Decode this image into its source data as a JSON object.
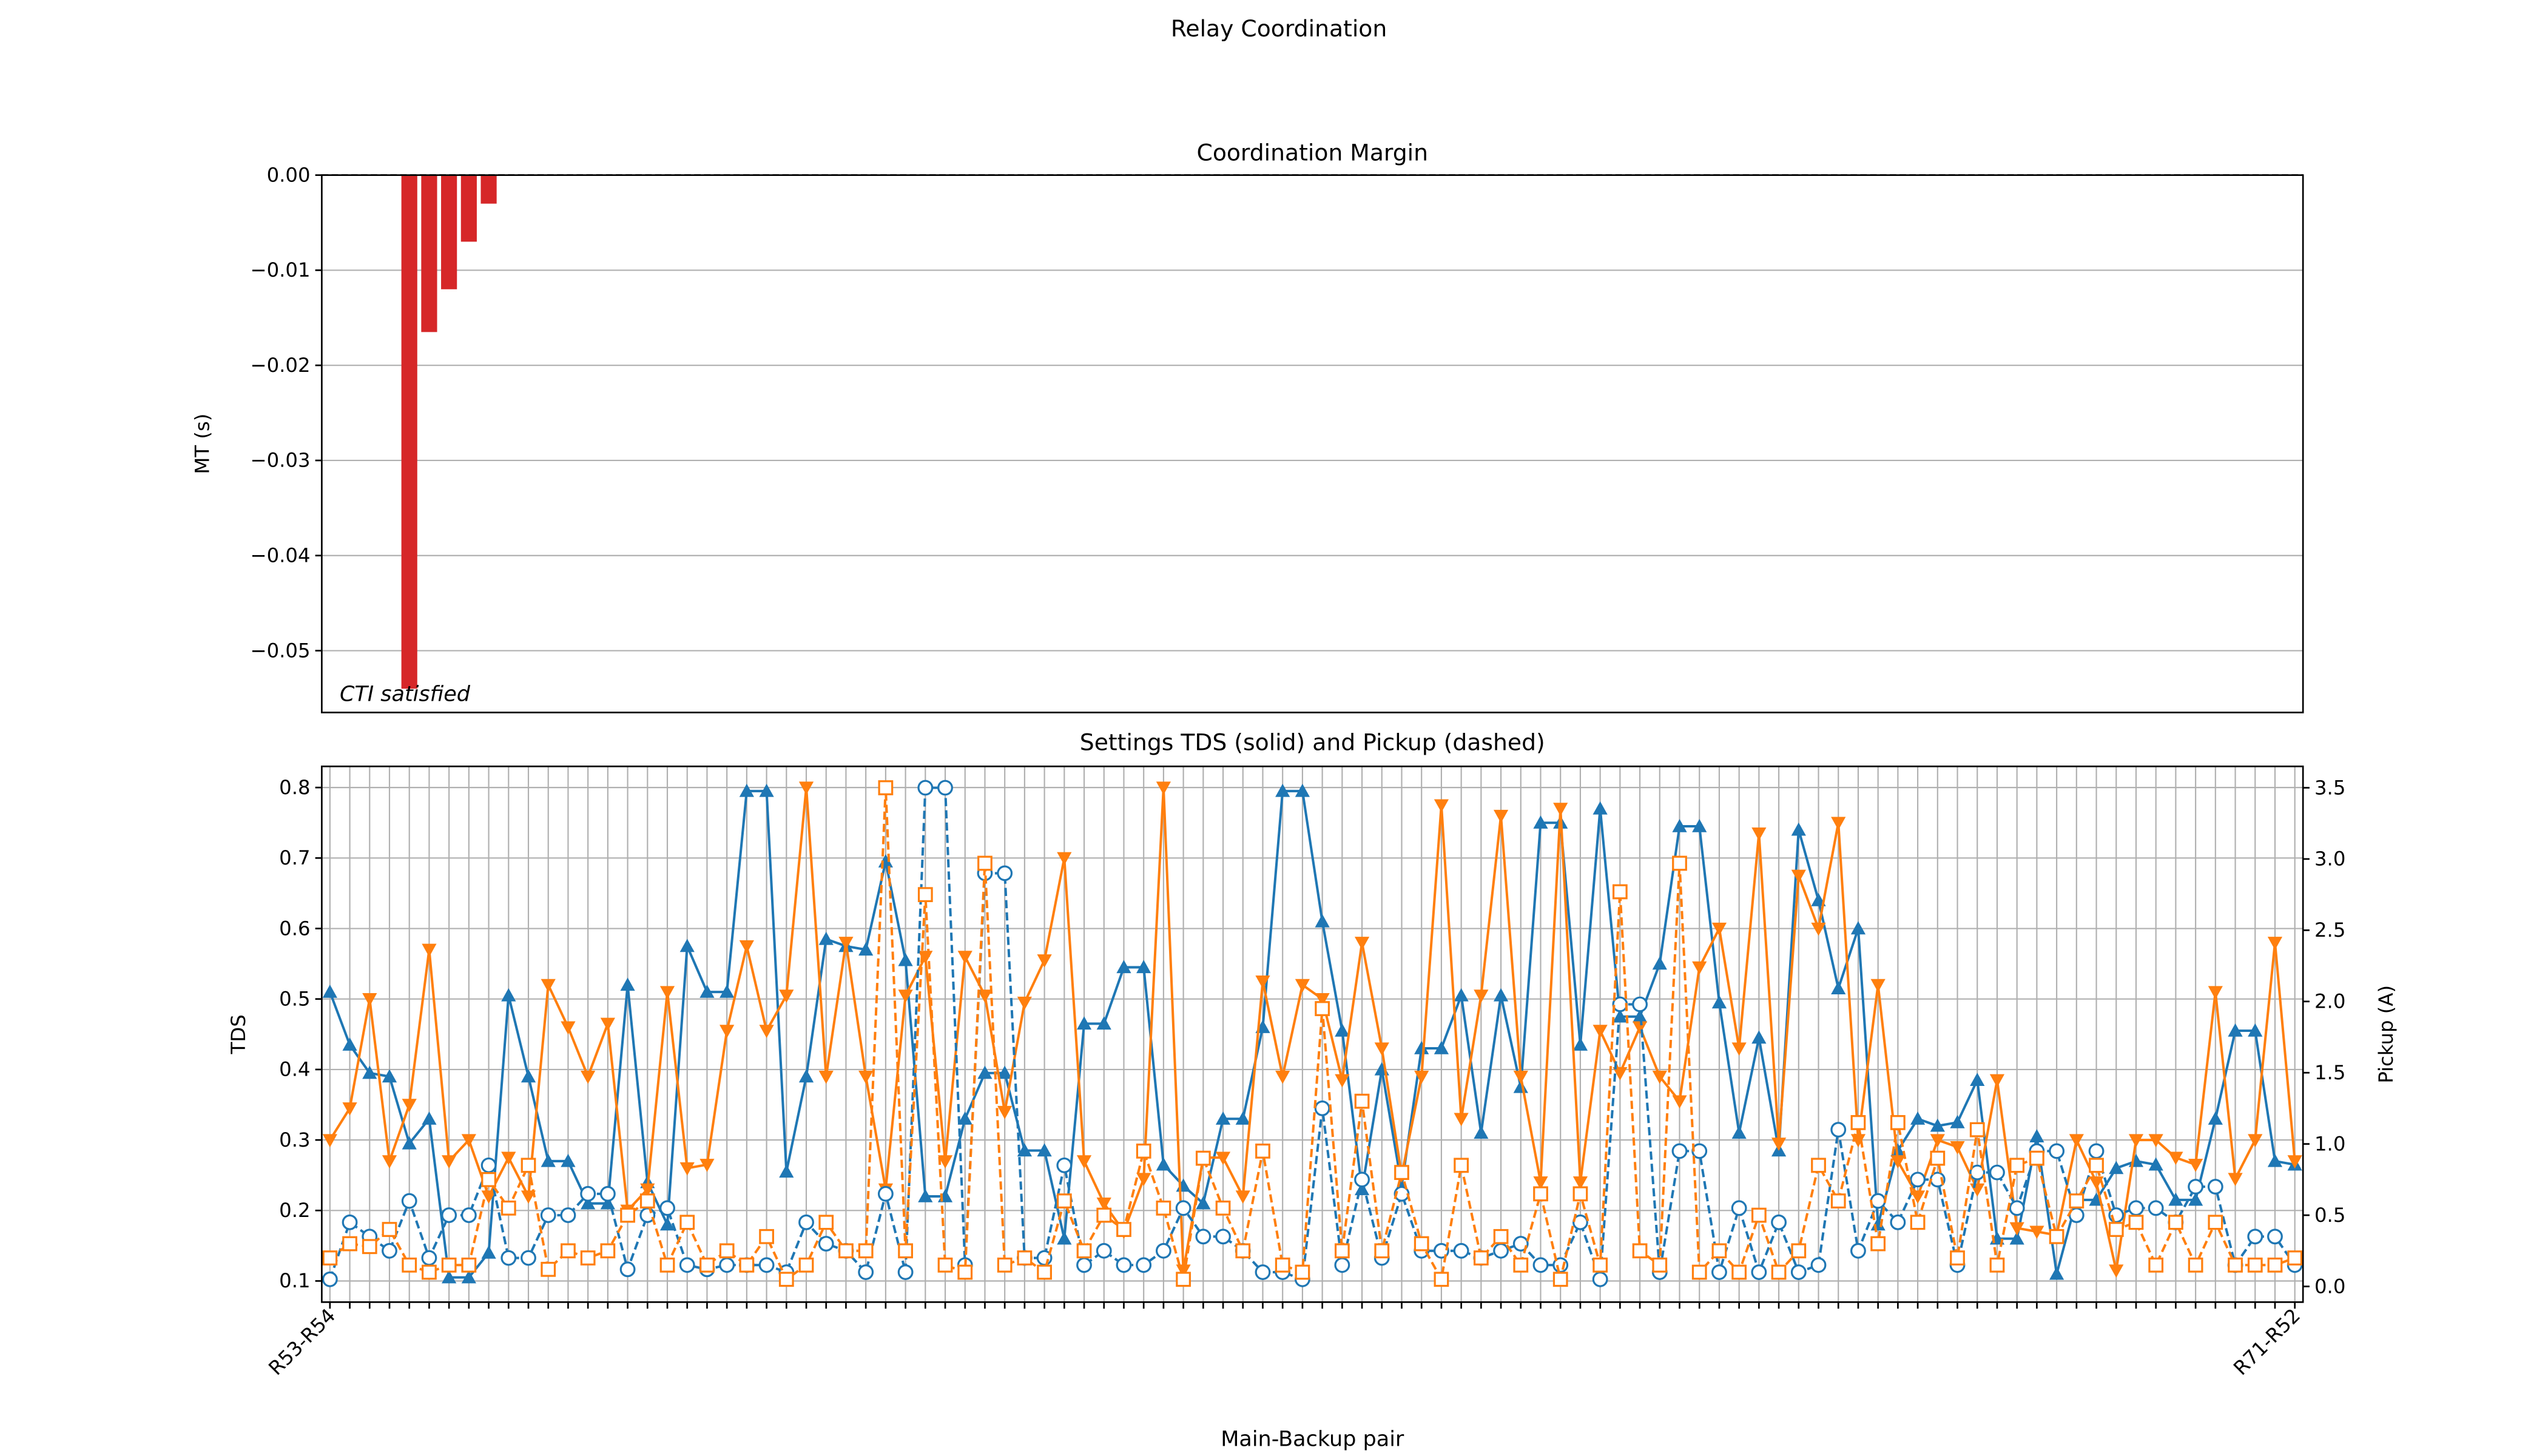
{
  "title": "Relay Coordination",
  "chart_data": [
    {
      "type": "bar",
      "title": "Coordination Margin",
      "ylabel": "MT (s)",
      "annotation": "CTI satisfied",
      "color": "#d62728",
      "reference_line": 0,
      "values": [
        0,
        0,
        0,
        0,
        -0.054,
        -0.0165,
        -0.012,
        -0.007,
        -0.003,
        0,
        0,
        0,
        0,
        0,
        0,
        0,
        0,
        0,
        0,
        0,
        0,
        0,
        0,
        0,
        0,
        0,
        0,
        0,
        0,
        0,
        0,
        0,
        0,
        0,
        0,
        0,
        0,
        0,
        0,
        0,
        0,
        0,
        0,
        0,
        0,
        0,
        0,
        0,
        0,
        0,
        0,
        0,
        0,
        0,
        0,
        0,
        0,
        0,
        0,
        0,
        0,
        0,
        0,
        0,
        0,
        0,
        0,
        0,
        0,
        0,
        0,
        0,
        0,
        0,
        0,
        0,
        0,
        0,
        0,
        0,
        0,
        0,
        0,
        0,
        0,
        0,
        0,
        0,
        0,
        0,
        0,
        0,
        0,
        0,
        0,
        0,
        0,
        0,
        0,
        0
      ],
      "ylim": [
        -0.0565,
        0
      ],
      "yticks": [
        {
          "value": 0,
          "label": "0.00"
        },
        {
          "value": -0.01,
          "label": "−0.01"
        },
        {
          "value": -0.02,
          "label": "−0.02"
        },
        {
          "value": -0.03,
          "label": "−0.03"
        },
        {
          "value": -0.04,
          "label": "−0.04"
        },
        {
          "value": -0.05,
          "label": "−0.05"
        }
      ],
      "grid": true
    },
    {
      "type": "line",
      "title": "Settings TDS (solid) and Pickup (dashed)",
      "xlabel": "Main-Backup pair",
      "ylabel": "TDS",
      "y2label": "Pickup (A)",
      "categories": [
        "R53-R54",
        null,
        null,
        null,
        null,
        null,
        null,
        null,
        null,
        null,
        null,
        null,
        null,
        null,
        null,
        null,
        null,
        null,
        null,
        null,
        null,
        null,
        null,
        null,
        null,
        null,
        null,
        null,
        null,
        null,
        null,
        null,
        null,
        null,
        null,
        null,
        null,
        null,
        null,
        null,
        null,
        null,
        null,
        null,
        null,
        null,
        null,
        null,
        null,
        null,
        null,
        null,
        null,
        null,
        null,
        null,
        null,
        null,
        null,
        null,
        null,
        null,
        null,
        null,
        null,
        null,
        null,
        null,
        null,
        null,
        null,
        null,
        null,
        null,
        null,
        null,
        null,
        null,
        null,
        null,
        null,
        null,
        null,
        null,
        null,
        null,
        null,
        null,
        null,
        null,
        null,
        null,
        null,
        null,
        null,
        null,
        null,
        null,
        null,
        "R71-R52"
      ],
      "series": [
        {
          "color": "#1f77b4",
          "marker": "triangle-up",
          "dashed": false,
          "axis": "y",
          "values": [
            0.51,
            0.435,
            0.395,
            0.39,
            0.295,
            0.33,
            0.105,
            0.105,
            0.14,
            0.505,
            0.39,
            0.27,
            0.27,
            0.21,
            0.21,
            0.52,
            0.24,
            0.18,
            0.575,
            0.51,
            0.51,
            0.795,
            0.795,
            0.255,
            0.39,
            0.585,
            0.575,
            0.57,
            0.695,
            0.555,
            0.22,
            0.22,
            0.33,
            0.395,
            0.395,
            0.285,
            0.285,
            0.16,
            0.465,
            0.465,
            0.545,
            0.545,
            0.265,
            0.235,
            0.21,
            0.33,
            0.33,
            0.46,
            0.795,
            0.795,
            0.61,
            0.455,
            0.23,
            0.4,
            0.235,
            0.43,
            0.43,
            0.505,
            0.31,
            0.505,
            0.375,
            0.75,
            0.75,
            0.435,
            0.77,
            0.475,
            0.475,
            0.55,
            0.745,
            0.745,
            0.495,
            0.31,
            0.445,
            0.285,
            0.74,
            0.64,
            0.515,
            0.6,
            0.18,
            0.285,
            0.33,
            0.32,
            0.325,
            0.385,
            0.16,
            0.16,
            0.305,
            0.11,
            0.215,
            0.215,
            0.26,
            0.27,
            0.265,
            0.215,
            0.215,
            0.33,
            0.455,
            0.455,
            0.27,
            0.265
          ]
        },
        {
          "color": "#ff7f0e",
          "marker": "triangle-down",
          "dashed": false,
          "axis": "y",
          "values": [
            0.3,
            0.345,
            0.5,
            0.27,
            0.35,
            0.57,
            0.27,
            0.3,
            0.22,
            0.275,
            0.22,
            0.52,
            0.46,
            0.39,
            0.465,
            0.2,
            0.23,
            0.51,
            0.26,
            0.265,
            0.455,
            0.575,
            0.455,
            0.505,
            0.8,
            0.39,
            0.58,
            0.39,
            0.23,
            0.505,
            0.56,
            0.27,
            0.56,
            0.505,
            0.34,
            0.495,
            0.555,
            0.7,
            0.27,
            0.21,
            0.17,
            0.245,
            0.8,
            0.115,
            0.275,
            0.275,
            0.22,
            0.525,
            0.39,
            0.52,
            0.5,
            0.385,
            0.58,
            0.43,
            0.25,
            0.39,
            0.775,
            0.33,
            0.505,
            0.76,
            0.39,
            0.24,
            0.77,
            0.24,
            0.455,
            0.395,
            0.46,
            0.39,
            0.355,
            0.545,
            0.6,
            0.43,
            0.735,
            0.295,
            0.675,
            0.6,
            0.75,
            0.3,
            0.52,
            0.27,
            0.22,
            0.3,
            0.29,
            0.23,
            0.385,
            0.175,
            0.17,
            0.165,
            0.3,
            0.24,
            0.115,
            0.3,
            0.3,
            0.275,
            0.265,
            0.51,
            0.245,
            0.3,
            0.58,
            0.27
          ]
        },
        {
          "color": "#1f77b4",
          "marker": "circle",
          "dashed": true,
          "axis": "y2",
          "values": [
            0.05,
            0.45,
            0.35,
            0.25,
            0.6,
            0.2,
            0.5,
            0.5,
            0.85,
            0.2,
            0.2,
            0.5,
            0.5,
            0.65,
            0.65,
            0.12,
            0.5,
            0.55,
            0.15,
            0.12,
            0.15,
            0.15,
            0.15,
            0.1,
            0.45,
            0.3,
            0.25,
            0.1,
            0.65,
            0.1,
            3.5,
            3.5,
            0.15,
            2.9,
            2.9,
            0.2,
            0.2,
            0.85,
            0.15,
            0.25,
            0.15,
            0.15,
            0.25,
            0.55,
            0.35,
            0.35,
            0.25,
            0.1,
            0.1,
            0.05,
            1.25,
            0.15,
            0.75,
            0.2,
            0.65,
            0.25,
            0.25,
            0.25,
            0.2,
            0.25,
            0.3,
            0.15,
            0.15,
            0.45,
            0.05,
            1.98,
            1.98,
            0.1,
            0.95,
            0.95,
            0.1,
            0.55,
            0.1,
            0.45,
            0.1,
            0.15,
            1.1,
            0.25,
            0.6,
            0.45,
            0.75,
            0.75,
            0.15,
            0.8,
            0.8,
            0.55,
            0.95,
            0.95,
            0.5,
            0.95,
            0.5,
            0.55,
            0.55,
            0.45,
            0.7,
            0.7,
            0.15,
            0.35,
            0.35,
            0.15
          ]
        },
        {
          "color": "#ff7f0e",
          "marker": "square",
          "dashed": true,
          "axis": "y2",
          "values": [
            0.2,
            0.3,
            0.28,
            0.4,
            0.15,
            0.1,
            0.15,
            0.15,
            0.75,
            0.55,
            0.85,
            0.12,
            0.25,
            0.2,
            0.25,
            0.5,
            0.6,
            0.15,
            0.45,
            0.15,
            0.25,
            0.15,
            0.35,
            0.05,
            0.15,
            0.45,
            0.25,
            0.25,
            3.5,
            0.25,
            2.75,
            0.15,
            0.1,
            2.97,
            0.15,
            0.2,
            0.1,
            0.6,
            0.25,
            0.5,
            0.4,
            0.95,
            0.55,
            0.05,
            0.9,
            0.55,
            0.25,
            0.95,
            0.15,
            0.1,
            1.95,
            0.25,
            1.3,
            0.25,
            0.8,
            0.3,
            0.05,
            0.85,
            0.2,
            0.35,
            0.15,
            0.65,
            0.05,
            0.65,
            0.15,
            2.77,
            0.25,
            0.15,
            2.97,
            0.1,
            0.25,
            0.1,
            0.5,
            0.1,
            0.25,
            0.85,
            0.6,
            1.15,
            0.3,
            1.15,
            0.45,
            0.9,
            0.2,
            1.1,
            0.15,
            0.85,
            0.9,
            0.35,
            0.6,
            0.85,
            0.4,
            0.45,
            0.15,
            0.45,
            0.15,
            0.45,
            0.15,
            0.15,
            0.15,
            0.2
          ]
        }
      ],
      "ylim": [
        0.07,
        0.83
      ],
      "yticks": [
        0.1,
        0.2,
        0.3,
        0.4,
        0.5,
        0.6,
        0.7,
        0.8
      ],
      "y2lim": [
        -0.11,
        3.65
      ],
      "y2ticks": [
        {
          "value": 0,
          "label": "0.0"
        },
        0.5,
        {
          "value": 1,
          "label": "1.0"
        },
        1.5,
        {
          "value": 2,
          "label": "2.0"
        },
        2.5,
        {
          "value": 3,
          "label": "3.0"
        },
        3.5
      ],
      "grid": true
    }
  ]
}
